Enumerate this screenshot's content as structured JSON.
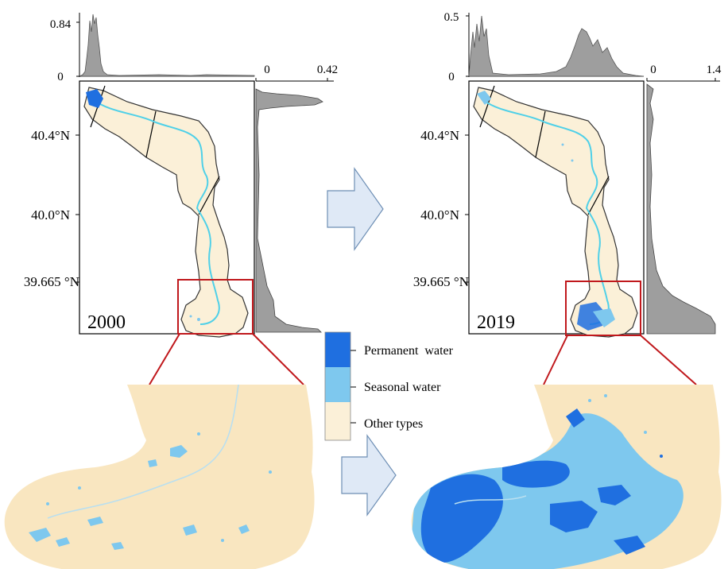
{
  "colors": {
    "permanent_water": "#1f6fe0",
    "seasonal_water": "#7ec8ee",
    "other_types": "#fbf0d8",
    "zoom_other": "#f9e6c0",
    "river": "#4fd0e8",
    "zoom_box": "#c0181c",
    "histogram": "#9e9e9e",
    "arrow_fill": "#dfe9f6",
    "arrow_stroke": "#6e8fb5"
  },
  "panels": [
    {
      "id": "2000",
      "year_label": "2000",
      "top_hist_max": "0.84",
      "top_hist_zero": "0",
      "side_hist_zero": "0",
      "side_hist_max": "0.42",
      "lat_labels": [
        "40.4°N",
        "40.0°N",
        "39.665 °N"
      ]
    },
    {
      "id": "2019",
      "year_label": "2019",
      "top_hist_max": "0.5",
      "top_hist_zero": "0",
      "side_hist_zero": "0",
      "side_hist_max": "1.4",
      "lat_labels": [
        "40.4°N",
        "40.0°N",
        "39.665 °N"
      ]
    }
  ],
  "legend": {
    "items": [
      {
        "label": "Permanent  water",
        "color_key": "permanent_water"
      },
      {
        "label": "Seasonal water",
        "color_key": "seasonal_water"
      },
      {
        "label": "Other types",
        "color_key": "other_types"
      }
    ]
  },
  "icons": {
    "transition_arrow_top": "right-arrow-icon",
    "transition_arrow_bottom": "right-arrow-icon"
  }
}
